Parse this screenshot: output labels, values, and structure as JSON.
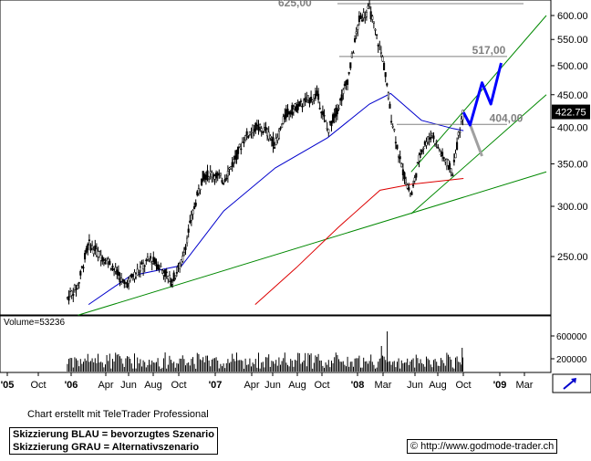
{
  "chart_data": {
    "type": "candlestick",
    "scale": "log",
    "price_axis_ticks": [
      600,
      550,
      500,
      450,
      400,
      350,
      300,
      250
    ],
    "last_price": "422.75",
    "x_tick_labels": [
      {
        "label": "'05",
        "major": true
      },
      {
        "label": "Oct",
        "major": false
      },
      {
        "label": "'06",
        "major": true
      },
      {
        "label": "Apr",
        "major": false
      },
      {
        "label": "Jun",
        "major": false
      },
      {
        "label": "Aug",
        "major": false
      },
      {
        "label": "Oct",
        "major": false
      },
      {
        "label": "'07",
        "major": true
      },
      {
        "label": "Apr",
        "major": false
      },
      {
        "label": "Jun",
        "major": false
      },
      {
        "label": "Aug",
        "major": false
      },
      {
        "label": "Oct",
        "major": false
      },
      {
        "label": "'08",
        "major": true
      },
      {
        "label": "Mar",
        "major": false
      },
      {
        "label": "Jun",
        "major": false
      },
      {
        "label": "Aug",
        "major": false
      },
      {
        "label": "Oct",
        "major": false
      },
      {
        "label": "'09",
        "major": true
      },
      {
        "label": "Mar",
        "major": false
      }
    ],
    "price_path": [
      [
        "2005-07-01",
        215
      ],
      [
        "2005-08-01",
        225
      ],
      [
        "2005-09-01",
        262
      ],
      [
        "2005-10-01",
        252
      ],
      [
        "2005-11-01",
        245
      ],
      [
        "2005-12-15",
        225
      ],
      [
        "2006-02-01",
        240
      ],
      [
        "2006-03-01",
        248
      ],
      [
        "2006-04-01",
        240
      ],
      [
        "2006-05-01",
        228
      ],
      [
        "2006-06-01",
        245
      ],
      [
        "2006-07-01",
        290
      ],
      [
        "2006-08-01",
        335
      ],
      [
        "2006-09-01",
        338
      ],
      [
        "2006-10-01",
        330
      ],
      [
        "2006-11-01",
        355
      ],
      [
        "2006-12-01",
        385
      ],
      [
        "2007-01-01",
        400
      ],
      [
        "2007-02-01",
        395
      ],
      [
        "2007-03-01",
        375
      ],
      [
        "2007-04-01",
        420
      ],
      [
        "2007-05-01",
        430
      ],
      [
        "2007-06-01",
        440
      ],
      [
        "2007-07-01",
        450
      ],
      [
        "2007-08-01",
        395
      ],
      [
        "2007-09-01",
        430
      ],
      [
        "2007-10-01",
        480
      ],
      [
        "2007-11-01",
        590
      ],
      [
        "2007-12-01",
        615
      ],
      [
        "2007-12-20",
        560
      ],
      [
        "2008-01-10",
        510
      ],
      [
        "2008-02-01",
        420
      ],
      [
        "2008-03-01",
        350
      ],
      [
        "2008-04-01",
        310
      ],
      [
        "2008-05-01",
        370
      ],
      [
        "2008-06-01",
        390
      ],
      [
        "2008-07-01",
        360
      ],
      [
        "2008-08-01",
        340
      ],
      [
        "2008-08-20",
        395
      ],
      [
        "2008-09-01",
        422.75
      ]
    ],
    "support_levels": [
      {
        "label": "625,00",
        "value": 625
      },
      {
        "label": "517,00",
        "value": 517
      },
      {
        "label": "404,00",
        "value": 404
      }
    ],
    "moving_averages": [
      {
        "color": "#0000cc",
        "points": [
          [
            "2005-09-01",
            210
          ],
          [
            "2006-01-01",
            233
          ],
          [
            "2006-06-01",
            242
          ],
          [
            "2006-10-01",
            295
          ],
          [
            "2007-03-01",
            345
          ],
          [
            "2007-08-01",
            385
          ],
          [
            "2007-12-01",
            435
          ],
          [
            "2008-02-01",
            452
          ],
          [
            "2008-05-01",
            410
          ],
          [
            "2008-08-01",
            398
          ],
          [
            "2008-09-01",
            395
          ]
        ]
      },
      {
        "color": "#dd0000",
        "points": [
          [
            "2007-01-01",
            210
          ],
          [
            "2007-05-01",
            240
          ],
          [
            "2007-09-01",
            278
          ],
          [
            "2008-01-01",
            318
          ],
          [
            "2008-04-01",
            325
          ],
          [
            "2008-09-01",
            332
          ]
        ]
      }
    ],
    "trendlines": [
      {
        "color": "#008800",
        "from": [
          "2005-08-01",
          202
        ],
        "to": [
          "2009-05-01",
          340
        ]
      },
      {
        "color": "#008800",
        "from": [
          "2008-04-01",
          340
        ],
        "to": [
          "2009-05-01",
          600
        ]
      },
      {
        "color": "#008800",
        "from": [
          "2008-04-01",
          292
        ],
        "to": [
          "2009-05-01",
          450
        ]
      }
    ],
    "scenario_blue": [
      [
        "2008-09-01",
        422
      ],
      [
        "2008-09-20",
        403
      ],
      [
        "2008-10-25",
        470
      ],
      [
        "2008-11-20",
        435
      ],
      [
        "2008-12-20",
        505
      ]
    ],
    "scenario_grey": [
      [
        "2008-09-01",
        422
      ],
      [
        "2008-09-20",
        404
      ],
      [
        "2008-10-25",
        360
      ]
    ],
    "volume": {
      "label": "Volume=53236",
      "ticks": [
        "600000",
        "200000"
      ]
    }
  },
  "footer": {
    "credit": "Chart erstellt mit TeleTrader Professional",
    "legend_blue": "Skizzierung BLAU = bevorzugtes Szenario",
    "legend_grey": "Skizzierung GRAU = Alternativszenario",
    "website": "http://www.godmode-trader.ch",
    "copyright_symbol": "©"
  },
  "colors": {
    "blue_ma": "#0000cc",
    "red_ma": "#dd0000",
    "trend": "#008800",
    "candle": "#000000",
    "level": "#808080",
    "scenario_blue": "#0000ff",
    "scenario_grey": "#a0a0a0"
  }
}
